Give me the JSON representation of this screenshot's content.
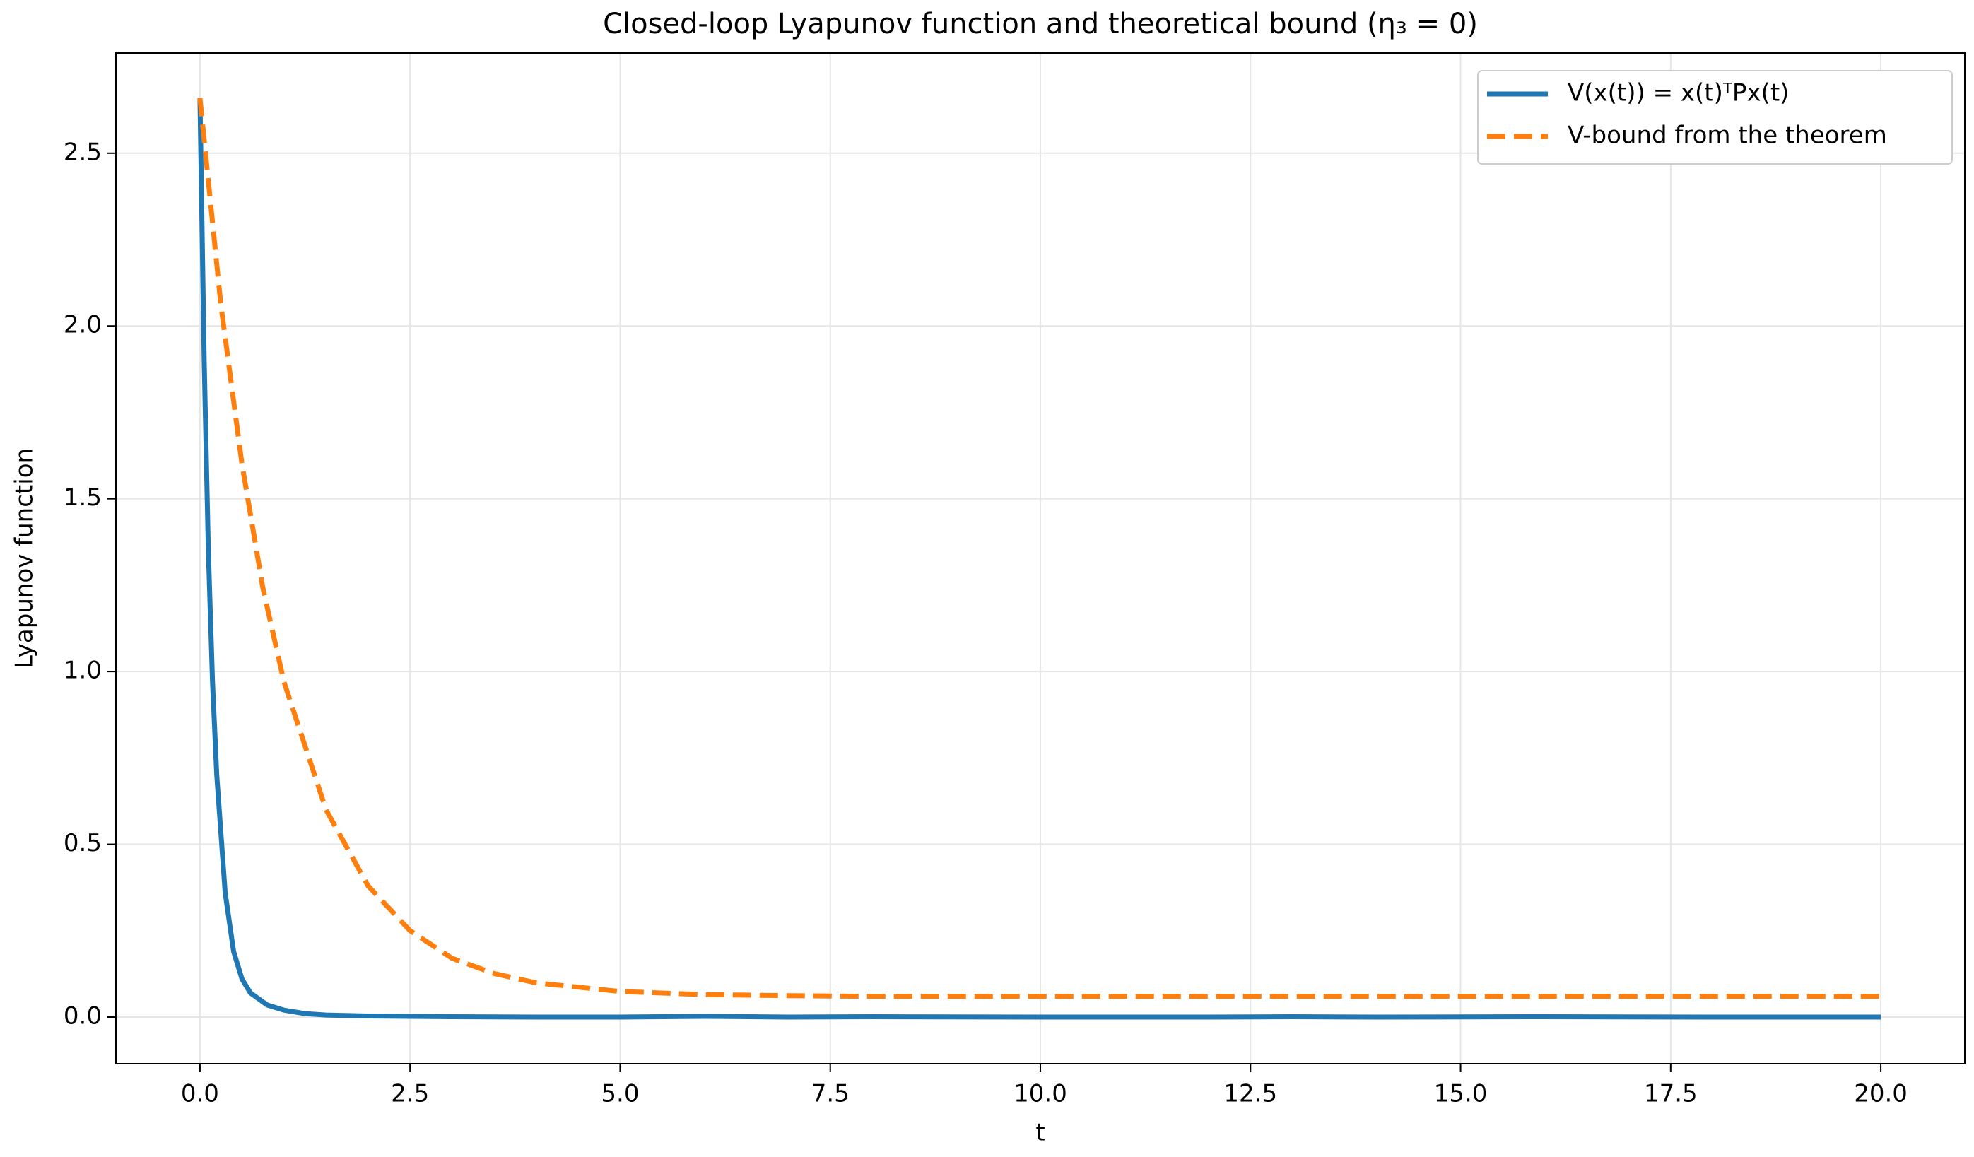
{
  "chart_data": {
    "type": "line",
    "title": "Closed-loop Lyapunov function and theoretical bound (η₃ = 0)",
    "xlabel": "t",
    "ylabel": "Lyapunov function",
    "xlim": [
      -1,
      21
    ],
    "ylim": [
      -0.135,
      2.79
    ],
    "xticks": [
      {
        "value": 0,
        "label": "0.0"
      },
      {
        "value": 2.5,
        "label": "2.5"
      },
      {
        "value": 5,
        "label": "5.0"
      },
      {
        "value": 7.5,
        "label": "7.5"
      },
      {
        "value": 10,
        "label": "10.0"
      },
      {
        "value": 12.5,
        "label": "12.5"
      },
      {
        "value": 15,
        "label": "15.0"
      },
      {
        "value": 17.5,
        "label": "17.5"
      },
      {
        "value": 20,
        "label": "20.0"
      }
    ],
    "yticks": [
      {
        "value": 0,
        "label": "0.0"
      },
      {
        "value": 0.5,
        "label": "0.5"
      },
      {
        "value": 1,
        "label": "1.0"
      },
      {
        "value": 1.5,
        "label": "1.5"
      },
      {
        "value": 2,
        "label": "2.0"
      },
      {
        "value": 2.5,
        "label": "2.5"
      }
    ],
    "grid": true,
    "legend": "upper right",
    "series": [
      {
        "name": "V(x(t)) = x(t)ᵀPx(t)",
        "color": "#1f77b4",
        "dash": false,
        "x": [
          0,
          0.05,
          0.1,
          0.15,
          0.2,
          0.3,
          0.4,
          0.5,
          0.6,
          0.8,
          1,
          1.25,
          1.5,
          2,
          2.5,
          3,
          4,
          5,
          6,
          7,
          8,
          10,
          12,
          13,
          14,
          16,
          18,
          20
        ],
        "values": [
          2.66,
          1.9,
          1.35,
          0.97,
          0.7,
          0.36,
          0.19,
          0.11,
          0.07,
          0.035,
          0.02,
          0.01,
          0.006,
          0.003,
          0.002,
          0.001,
          0,
          0,
          0.002,
          0,
          0.001,
          0,
          0,
          0.001,
          0,
          0.001,
          0,
          0
        ]
      },
      {
        "name": "V-bound from the theorem",
        "color": "#ff7f0e",
        "dash": true,
        "x": [
          0,
          0.25,
          0.5,
          0.75,
          1,
          1.5,
          2,
          2.5,
          3,
          3.5,
          4,
          5,
          6,
          7,
          8,
          10,
          15,
          20
        ],
        "values": [
          2.66,
          2.06,
          1.6,
          1.24,
          0.97,
          0.6,
          0.38,
          0.25,
          0.17,
          0.126,
          0.099,
          0.074,
          0.065,
          0.062,
          0.06,
          0.06,
          0.06,
          0.06
        ]
      }
    ]
  }
}
